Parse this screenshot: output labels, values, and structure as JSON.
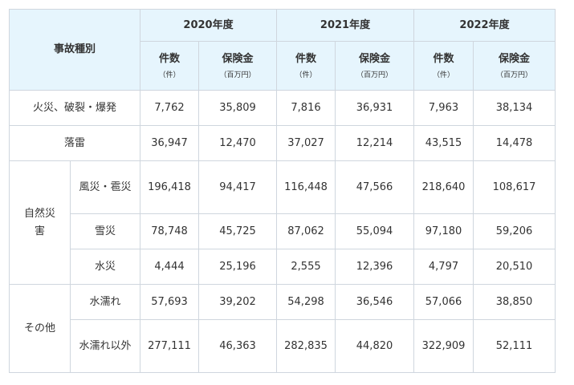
{
  "header": {
    "category_label": "事故種別",
    "years": [
      "2020年度",
      "2021年度",
      "2022年度"
    ],
    "count_label": "件数",
    "count_unit": "（件）",
    "insurance_label": "保険金",
    "insurance_unit": "（百万円）"
  },
  "groups": {
    "natural": "自然災害",
    "other": "その他"
  },
  "rows": [
    {
      "name": "火災、破裂・爆発",
      "values": [
        "7,762",
        "35,809",
        "7,816",
        "36,931",
        "7,963",
        "38,134"
      ]
    },
    {
      "name": "落雷",
      "values": [
        "36,947",
        "12,470",
        "37,027",
        "12,214",
        "43,515",
        "14,478"
      ]
    },
    {
      "name": "風災・雹災",
      "values": [
        "196,418",
        "94,417",
        "116,448",
        "47,566",
        "218,640",
        "108,617"
      ]
    },
    {
      "name": "雪災",
      "values": [
        "78,748",
        "45,725",
        "87,062",
        "55,094",
        "97,180",
        "59,206"
      ]
    },
    {
      "name": "水災",
      "values": [
        "4,444",
        "25,196",
        "2,555",
        "12,396",
        "4,797",
        "20,510"
      ]
    },
    {
      "name": "水濡れ",
      "values": [
        "57,693",
        "39,202",
        "54,298",
        "36,546",
        "57,066",
        "38,850"
      ]
    },
    {
      "name": "水濡れ以外",
      "values": [
        "277,111",
        "46,363",
        "282,835",
        "44,820",
        "322,909",
        "52,111"
      ]
    }
  ]
}
